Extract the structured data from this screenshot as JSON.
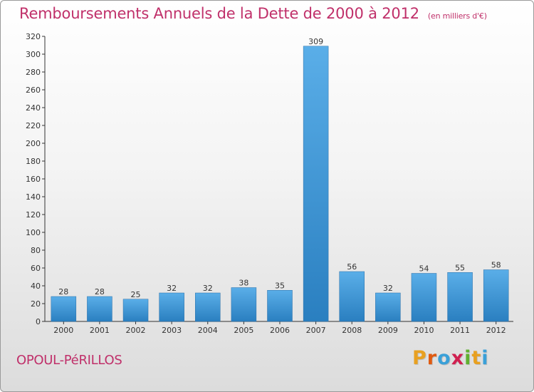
{
  "chart_data": {
    "type": "bar",
    "title": "Remboursements Annuels de la Dette de 2000 à 2012",
    "unit": "(en milliers d'€)",
    "categories": [
      "2000",
      "2001",
      "2002",
      "2003",
      "2004",
      "2005",
      "2006",
      "2007",
      "2008",
      "2009",
      "2010",
      "2011",
      "2012"
    ],
    "values": [
      28,
      28,
      25,
      32,
      32,
      38,
      35,
      309,
      56,
      32,
      54,
      55,
      58
    ],
    "value_labels": [
      "28",
      "28",
      "25",
      "32",
      "32",
      "38",
      "35",
      "309",
      "56",
      "32",
      "54",
      "55",
      "58"
    ],
    "ylim": [
      0,
      320
    ],
    "yticks": [
      "0",
      "20",
      "40",
      "60",
      "80",
      "100",
      "120",
      "140",
      "160",
      "180",
      "200",
      "220",
      "240",
      "260",
      "280",
      "300",
      "320"
    ],
    "ytick_values": [
      0,
      20,
      40,
      60,
      80,
      100,
      120,
      140,
      160,
      180,
      200,
      220,
      240,
      260,
      280,
      300,
      320
    ],
    "grid": false,
    "xlabel": "",
    "ylabel": ""
  },
  "footer": {
    "city": "OPOUL-PéRILLOS",
    "logo": [
      "P",
      "r",
      "o",
      "x",
      "i",
      "t",
      "i"
    ]
  },
  "colors": {
    "title": "#c0306a",
    "bar_top": "#5aaee8",
    "bar_bottom": "#2a7fc0",
    "logo": [
      "#e8a020",
      "#e05a10",
      "#3aa0d8",
      "#d02050",
      "#60b030",
      "#e8a020",
      "#3aa0d8"
    ]
  }
}
